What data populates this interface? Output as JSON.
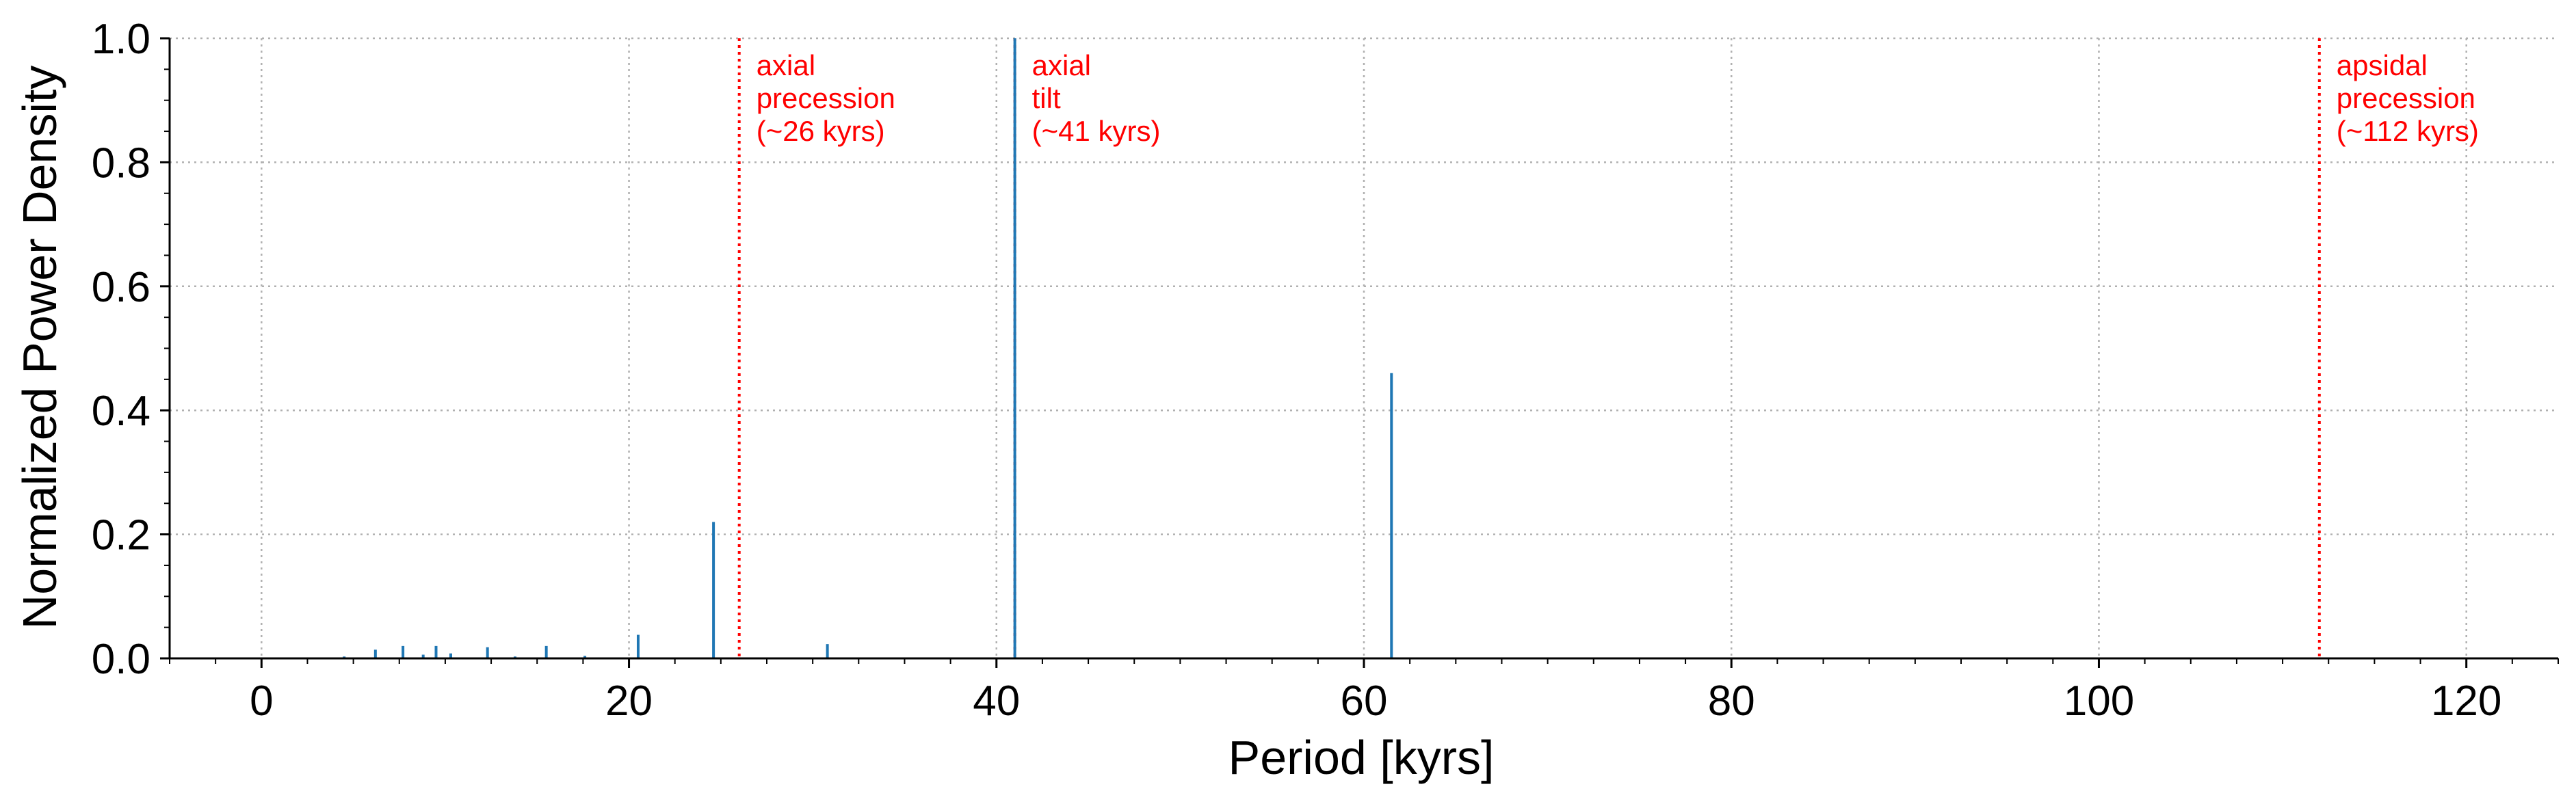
{
  "chart_data": {
    "type": "bar",
    "xlabel": "Period [kyrs]",
    "ylabel": "Normalized Power Density",
    "xlim": [
      -5,
      125
    ],
    "ylim": [
      0,
      1.0
    ],
    "xticks": [
      0,
      20,
      40,
      60,
      80,
      100,
      120
    ],
    "yticks": [
      0.0,
      0.2,
      0.4,
      0.6,
      0.8,
      1.0
    ],
    "xtick_labels": [
      "0",
      "20",
      "40",
      "60",
      "80",
      "100",
      "120"
    ],
    "ytick_labels": [
      "0.0",
      "0.2",
      "0.4",
      "0.6",
      "0.8",
      "1.0"
    ],
    "grid": true,
    "series": [
      {
        "x": [
          4.5,
          6.2,
          7.7,
          8.8,
          9.5,
          10.3,
          12.3,
          13.8,
          15.5,
          17.6,
          20.5,
          24.6,
          30.8,
          41.0,
          61.5
        ],
        "values": [
          0.003,
          0.014,
          0.02,
          0.006,
          0.02,
          0.008,
          0.018,
          0.003,
          0.02,
          0.004,
          0.038,
          0.22,
          0.023,
          1.0,
          0.46
        ],
        "color": "#1f77b4"
      }
    ],
    "reference_lines": [
      {
        "x": 26,
        "color": "#ff0000",
        "label": [
          "axial",
          "precession",
          "(~26 kyrs)"
        ]
      },
      {
        "x": 41,
        "color": "#ff0000",
        "label": [
          "axial",
          "tilt",
          "(~41 kyrs)"
        ]
      },
      {
        "x": 112,
        "color": "#ff0000",
        "label": [
          "apsidal",
          "precession",
          "(~112 kyrs)"
        ]
      }
    ]
  }
}
